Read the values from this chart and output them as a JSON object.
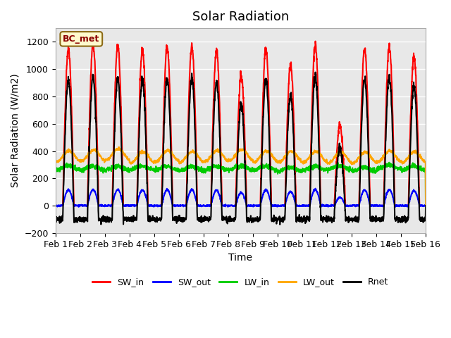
{
  "title": "Solar Radiation",
  "ylabel": "Solar Radiation (W/m2)",
  "xlabel": "Time",
  "ylim": [
    -200,
    1300
  ],
  "xlim": [
    0,
    15
  ],
  "xtick_labels": [
    "Feb 1",
    "Feb 2",
    "Feb 3",
    "Feb 4",
    "Feb 5",
    "Feb 6",
    "Feb 7",
    "Feb 8",
    "Feb 9",
    "Feb 10",
    "Feb 11",
    "Feb 12",
    "Feb 13",
    "Feb 14",
    "Feb 15",
    "Feb 16"
  ],
  "colors": {
    "SW_in": "#FF0000",
    "SW_out": "#0000FF",
    "LW_in": "#00CC00",
    "LW_out": "#FFA500",
    "Rnet": "#000000"
  },
  "line_widths": {
    "SW_in": 1.5,
    "SW_out": 1.5,
    "LW_in": 1.5,
    "LW_out": 1.5,
    "Rnet": 1.5
  },
  "legend_label": "BC_met",
  "background_color": "#FFFFFF",
  "plot_bg_color": "#E8E8E8",
  "grid_color": "#FFFFFF",
  "title_fontsize": 13,
  "label_fontsize": 10,
  "tick_fontsize": 9,
  "n_days": 15,
  "points_per_day": 144
}
